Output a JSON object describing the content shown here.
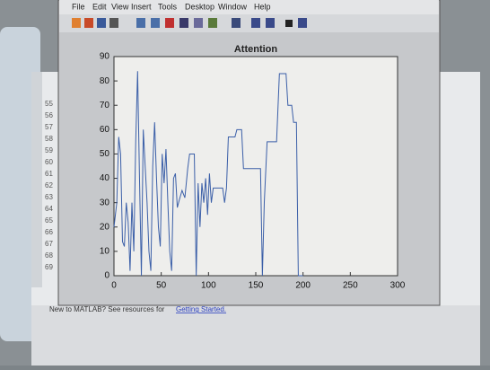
{
  "window": {
    "menu": [
      "File",
      "Edit",
      "View",
      "Insert",
      "Tools",
      "Desktop",
      "Window",
      "Help"
    ]
  },
  "editor": {
    "line_numbers": [
      "55",
      "56",
      "57",
      "58",
      "59",
      "60",
      "61",
      "62",
      "63",
      "64",
      "65",
      "66",
      "67",
      "68",
      "69"
    ]
  },
  "command_window": {
    "text": "New to MATLAB? See resources for",
    "link": "Getting Started."
  },
  "chart_data": {
    "type": "line",
    "title": "Attention",
    "color": "#3b5fa8",
    "x": [
      0,
      3,
      5,
      7,
      9,
      11,
      13,
      15,
      17,
      19,
      21,
      23,
      25,
      27,
      29,
      31,
      33,
      35,
      37,
      39,
      41,
      43,
      45,
      47,
      49,
      51,
      53,
      55,
      57,
      59,
      61,
      63,
      65,
      67,
      69,
      72,
      75,
      78,
      80,
      85,
      87,
      89,
      91,
      93,
      95,
      97,
      99,
      101,
      103,
      105,
      115,
      117,
      119,
      121,
      128,
      130,
      135,
      137,
      150,
      155,
      157,
      159,
      162,
      172,
      175,
      182,
      184,
      188,
      190,
      193,
      195,
      200
    ],
    "values": [
      20,
      30,
      57,
      50,
      14,
      12,
      30,
      22,
      2,
      30,
      10,
      55,
      84,
      40,
      0,
      60,
      45,
      30,
      10,
      2,
      45,
      63,
      40,
      20,
      12,
      50,
      38,
      52,
      30,
      10,
      2,
      40,
      42,
      28,
      31,
      35,
      32,
      44,
      50,
      50,
      0,
      38,
      20,
      38,
      30,
      40,
      25,
      42,
      30,
      36,
      36,
      30,
      36,
      57,
      57,
      60,
      60,
      44,
      44,
      44,
      0,
      30,
      55,
      55,
      83,
      83,
      70,
      70,
      63,
      63,
      0,
      0
    ],
    "xlim": [
      0,
      300
    ],
    "ylim": [
      0,
      90
    ],
    "xticks": [
      0,
      50,
      100,
      150,
      200,
      250,
      300
    ],
    "yticks": [
      0,
      10,
      20,
      30,
      40,
      50,
      60,
      70,
      80,
      90
    ]
  }
}
